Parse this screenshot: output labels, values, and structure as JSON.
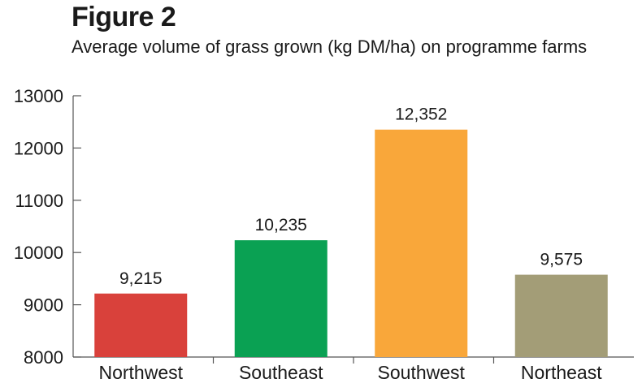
{
  "figure_label": "Figure 2",
  "chart_data": {
    "type": "bar",
    "title": "Average volume of grass grown (kg DM/ha) on programme farms",
    "xlabel": "",
    "ylabel": "",
    "ylim": [
      8000,
      13000
    ],
    "yticks": [
      8000,
      9000,
      10000,
      11000,
      12000,
      13000
    ],
    "ytick_labels": [
      "8000",
      "9000",
      "10000",
      "11000",
      "12000",
      "13000"
    ],
    "categories": [
      "Northwest",
      "Southeast",
      "Southwest",
      "Northeast"
    ],
    "values": [
      9215,
      10235,
      12352,
      9575
    ],
    "data_labels": [
      "9,215",
      "10,235",
      "12,352",
      "9,575"
    ],
    "colors": [
      "#d9413b",
      "#0aa153",
      "#f9a73a",
      "#a39d77"
    ],
    "grid": false,
    "legend": "none"
  }
}
